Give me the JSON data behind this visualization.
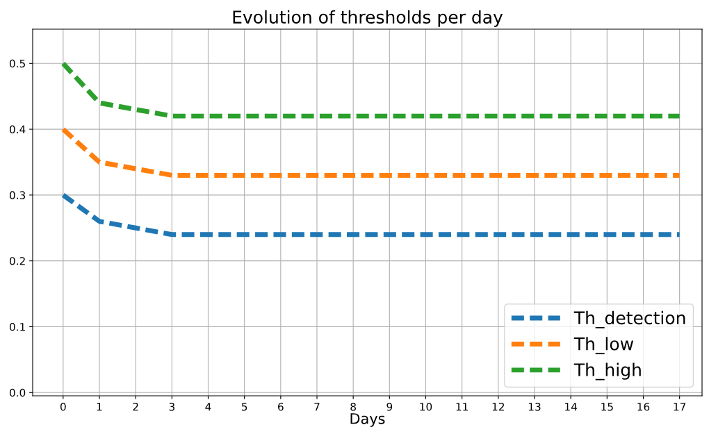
{
  "chart_data": {
    "type": "line",
    "title": "Evolution of thresholds per day",
    "xlabel": "Days",
    "x": [
      0,
      1,
      2,
      3,
      4,
      5,
      6,
      7,
      8,
      9,
      10,
      11,
      12,
      13,
      14,
      15,
      16,
      17
    ],
    "series": [
      {
        "name": "Th_detection",
        "color": "#1f77b4",
        "values": [
          0.3,
          0.26,
          0.25,
          0.24,
          0.24,
          0.24,
          0.24,
          0.24,
          0.24,
          0.24,
          0.24,
          0.24,
          0.24,
          0.24,
          0.24,
          0.24,
          0.24,
          0.24
        ]
      },
      {
        "name": "Th_low",
        "color": "#ff7f0e",
        "values": [
          0.4,
          0.35,
          0.34,
          0.33,
          0.33,
          0.33,
          0.33,
          0.33,
          0.33,
          0.33,
          0.33,
          0.33,
          0.33,
          0.33,
          0.33,
          0.33,
          0.33,
          0.33
        ]
      },
      {
        "name": "Th_high",
        "color": "#2ca02c",
        "values": [
          0.5,
          0.44,
          0.43,
          0.42,
          0.42,
          0.42,
          0.42,
          0.42,
          0.42,
          0.42,
          0.42,
          0.42,
          0.42,
          0.42,
          0.42,
          0.42,
          0.42,
          0.42
        ]
      }
    ],
    "xlim": [
      -0.84,
      17.62
    ],
    "ylim": [
      -0.005,
      0.552
    ],
    "xticks": [
      0,
      1,
      2,
      3,
      4,
      5,
      6,
      7,
      8,
      9,
      10,
      11,
      12,
      13,
      14,
      15,
      16,
      17
    ],
    "yticks": [
      {
        "value": 0,
        "label": "0.0"
      },
      {
        "value": 0.1,
        "label": "0.1"
      },
      {
        "value": 0.2,
        "label": "0.2"
      },
      {
        "value": 0.3,
        "label": "0.3"
      },
      {
        "value": 0.4,
        "label": "0.4"
      },
      {
        "value": 0.5,
        "label": "0.5"
      }
    ],
    "grid": true,
    "legend": "lower right",
    "line_style": "dashed",
    "marker": "none"
  }
}
